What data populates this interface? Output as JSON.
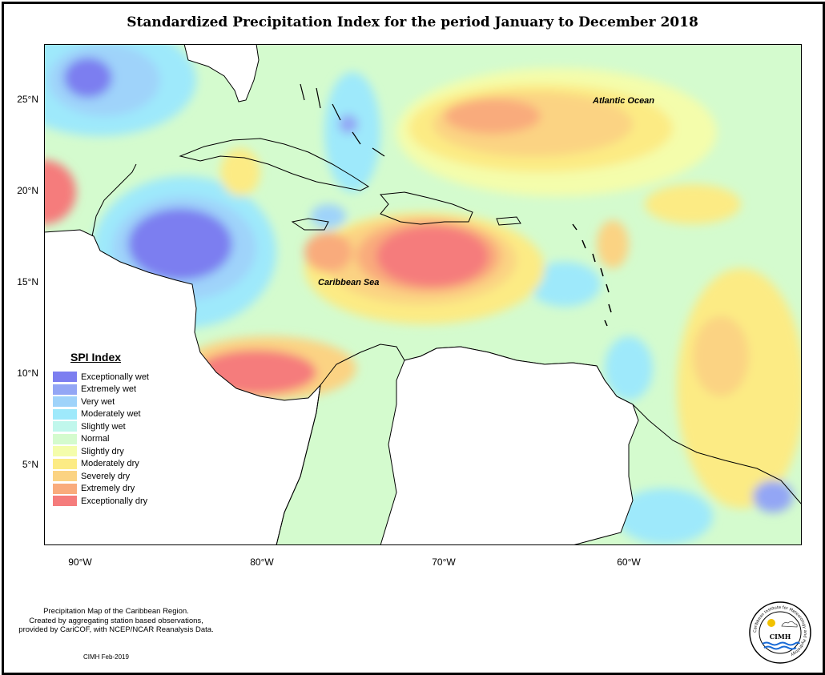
{
  "title": "Standardized Precipitation Index for the period January to December 2018",
  "axes": {
    "y_ticks": [
      "25°N",
      "20°N",
      "15°N",
      "10°N",
      "5°N"
    ],
    "x_ticks": [
      "90°W",
      "80°W",
      "70°W",
      "60°W"
    ]
  },
  "labels": {
    "atlantic": "Atlantic Ocean",
    "caribbean": "Caribbean Sea"
  },
  "legend": {
    "title": "SPI Index",
    "items": [
      {
        "label": "Exceptionally wet",
        "color": "#7c7ef0"
      },
      {
        "label": "Extremely wet",
        "color": "#93a6f5"
      },
      {
        "label": "Very wet",
        "color": "#9fd3fa"
      },
      {
        "label": "Moderately wet",
        "color": "#9ee9fb"
      },
      {
        "label": "Slightly wet",
        "color": "#c0f7ec"
      },
      {
        "label": "Normal",
        "color": "#d4fbce"
      },
      {
        "label": "Slightly dry",
        "color": "#f4fdab"
      },
      {
        "label": "Moderately dry",
        "color": "#fceb84"
      },
      {
        "label": "Severely dry",
        "color": "#fbd383"
      },
      {
        "label": "Extremely dry",
        "color": "#f9ab7c"
      },
      {
        "label": "Exceptionally dry",
        "color": "#f57c7c"
      }
    ]
  },
  "footer": {
    "lines": [
      "Precipitation Map of the Caribbean Region.",
      "Created by aggregating station based observations,",
      "provided by CariCOF, with NCEP/NCAR Reanalysis Data."
    ],
    "credit": "CIMH Feb-2019"
  },
  "logo": {
    "text": "CIMH",
    "ring_text": "Caribbean Institute for Meteorology and Hydrology"
  }
}
